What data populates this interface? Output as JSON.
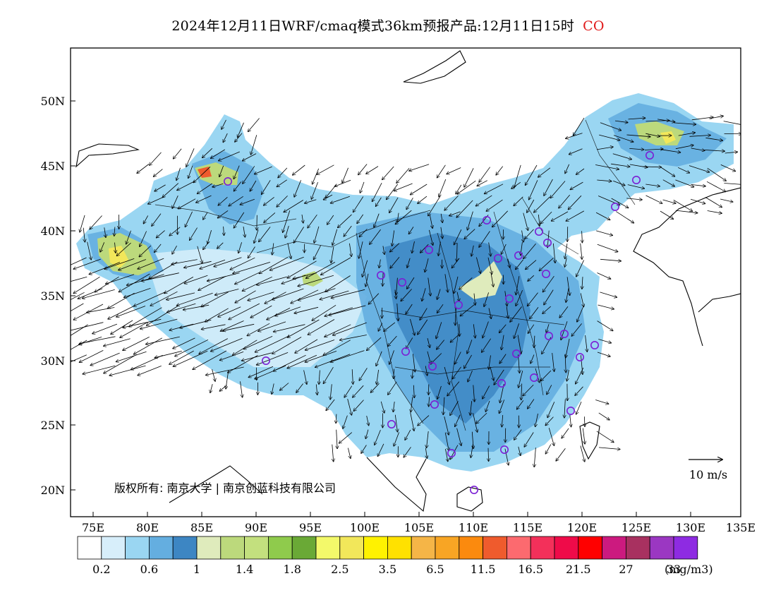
{
  "title": {
    "main": "2024年12月11日WRF/cmaq模式36km预报产品:12月11日15时",
    "species": "CO"
  },
  "map": {
    "lon_range": [
      73,
      135
    ],
    "lat_range": [
      18,
      54
    ],
    "lon_ticks": [
      "75E",
      "80E",
      "85E",
      "90E",
      "95E",
      "100E",
      "105E",
      "110E",
      "115E",
      "120E",
      "125E",
      "130E",
      "135E"
    ],
    "lat_ticks": [
      "20N",
      "25N",
      "30N",
      "35N",
      "40N",
      "45N",
      "50N"
    ],
    "copyright": "版权所有: 南京大学 | 南京创蓝科技有限公司",
    "wind_reference": "10 m/s",
    "station_marker_color": "#7b1fd4"
  },
  "colorbar": {
    "colors": [
      "#ffffff",
      "#d7eefa",
      "#9ad6f2",
      "#64aee0",
      "#3d86c3",
      "#dfebbc",
      "#bcd97c",
      "#c3e07e",
      "#8fcb4c",
      "#6aa936",
      "#f3f96a",
      "#f2e75a",
      "#fff200",
      "#ffe100",
      "#f5b547",
      "#f8a524",
      "#fb8a0e",
      "#ef5b2d",
      "#fc6a6f",
      "#f3305a",
      "#ef0b49",
      "#ff0000",
      "#cc1a7f",
      "#a83160",
      "#9b37c2",
      "#8e2be2"
    ],
    "labels": [
      "0.2",
      "0.6",
      "1",
      "1.4",
      "1.8",
      "2.5",
      "3.5",
      "6.5",
      "11.5",
      "16.5",
      "21.5",
      "27",
      "33"
    ],
    "unit": "(mg/m3)"
  }
}
